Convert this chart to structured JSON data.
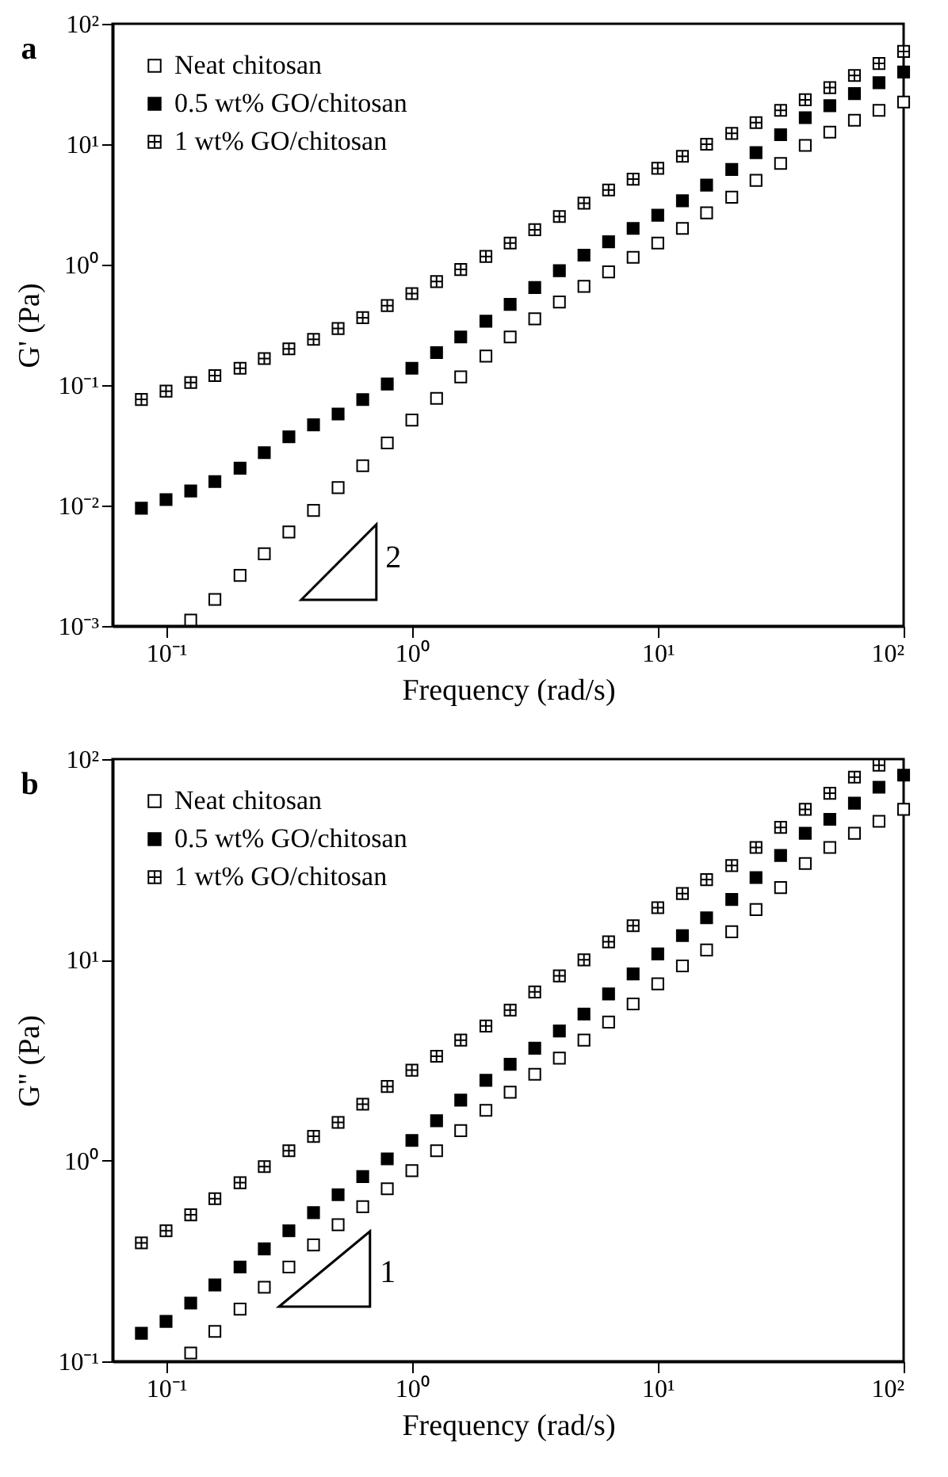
{
  "chart_data": [
    {
      "type": "scatter",
      "title": "a",
      "xlabel": "Frequency (rad/s)",
      "ylabel": "G' (Pa)",
      "log": "xy",
      "grid": false,
      "legend": "top left",
      "marker": "square",
      "annotations": [
        "2"
      ],
      "xlim": [
        0.0606,
        100
      ],
      "ylim": [
        0.001,
        100
      ],
      "xticks": [
        {
          "value": 0.1,
          "label": "10⁻¹"
        },
        {
          "value": 1,
          "label": "10⁰"
        },
        {
          "value": 10,
          "label": "10¹"
        },
        {
          "value": 100,
          "label": "10²"
        }
      ],
      "yticks": [
        {
          "value": 0.001,
          "label": "10⁻³"
        },
        {
          "value": 0.01,
          "label": "10⁻²"
        },
        {
          "value": 0.1,
          "label": "10⁻¹"
        },
        {
          "value": 1,
          "label": "10⁰"
        },
        {
          "value": 10,
          "label": "10¹"
        },
        {
          "value": 100,
          "label": "10²"
        }
      ],
      "x": [
        0.0794,
        0.1,
        0.126,
        0.158,
        0.2,
        0.251,
        0.316,
        0.398,
        0.501,
        0.631,
        0.794,
        1,
        1.26,
        1.58,
        2,
        2.51,
        3.16,
        3.98,
        5.01,
        6.31,
        7.94,
        10,
        12.6,
        15.8,
        20,
        25.1,
        31.6,
        39.8,
        50.1,
        63.1,
        79.4,
        100
      ],
      "series": [
        {
          "name": "Neat chitosan",
          "color": "#000000",
          "values": [
            null,
            null,
            0.00112,
            0.00166,
            0.00263,
            0.00398,
            0.00603,
            0.00912,
            0.0141,
            0.0214,
            0.0331,
            0.0513,
            0.0776,
            0.117,
            0.174,
            0.251,
            0.355,
            0.49,
            0.661,
            0.871,
            1.15,
            1.51,
            2.0,
            2.69,
            3.63,
            5.01,
            6.92,
            9.77,
            12.6,
            15.8,
            19.1,
            22.4
          ]
        },
        {
          "name": "0.5 wt% GO/chitosan",
          "color": "#000000",
          "values": [
            0.0095,
            0.0112,
            0.0132,
            0.0158,
            0.0204,
            0.0275,
            0.0372,
            0.0468,
            0.0575,
            0.0759,
            0.102,
            0.138,
            0.186,
            0.251,
            0.339,
            0.468,
            0.646,
            0.891,
            1.2,
            1.55,
            2.0,
            2.57,
            3.39,
            4.57,
            6.17,
            8.51,
            12.0,
            16.6,
            20.9,
            26.3,
            32.4,
            39.8
          ]
        },
        {
          "name": "1 wt% GO/chitosan",
          "color": "#000000",
          "marker": "cross",
          "values": [
            0.076,
            0.089,
            0.105,
            0.12,
            0.138,
            0.166,
            0.2,
            0.24,
            0.295,
            0.363,
            0.457,
            0.575,
            0.724,
            0.912,
            1.17,
            1.51,
            1.95,
            2.51,
            3.24,
            4.17,
            5.13,
            6.31,
            7.94,
            10,
            12.3,
            15.1,
            19.1,
            23.4,
            29.5,
            37.2,
            46.8,
            58.9
          ]
        }
      ]
    },
    {
      "type": "scatter",
      "title": "b",
      "xlabel": "Frequency (rad/s)",
      "ylabel": "G\" (Pa)",
      "log": "xy",
      "grid": false,
      "legend": "top left",
      "marker": "square",
      "annotations": [
        "1"
      ],
      "xlim": [
        0.0606,
        100
      ],
      "ylim": [
        0.1,
        100
      ],
      "xticks": [
        {
          "value": 0.1,
          "label": "10⁻¹"
        },
        {
          "value": 1,
          "label": "10⁰"
        },
        {
          "value": 10,
          "label": "10¹"
        },
        {
          "value": 100,
          "label": "10²"
        }
      ],
      "yticks": [
        {
          "value": 0.1,
          "label": "10⁻¹"
        },
        {
          "value": 1,
          "label": "10⁰"
        },
        {
          "value": 10,
          "label": "10¹"
        },
        {
          "value": 100,
          "label": "10²"
        }
      ],
      "x": [
        0.0794,
        0.1,
        0.126,
        0.158,
        0.2,
        0.251,
        0.316,
        0.398,
        0.501,
        0.631,
        0.794,
        1,
        1.26,
        1.58,
        2,
        2.51,
        3.16,
        3.98,
        5.01,
        6.31,
        7.94,
        10,
        12.6,
        15.8,
        20,
        25.1,
        31.6,
        39.8,
        50.1,
        63.1,
        79.4,
        100
      ],
      "series": [
        {
          "name": "Neat chitosan",
          "color": "#000000",
          "values": [
            null,
            null,
            0.11,
            0.141,
            0.182,
            0.234,
            0.295,
            0.38,
            0.479,
            0.589,
            0.724,
            0.891,
            1.12,
            1.41,
            1.78,
            2.19,
            2.69,
            3.24,
            3.98,
            4.9,
            6.03,
            7.59,
            9.33,
            11.2,
            13.8,
            17.8,
            22.9,
            30.2,
            36.3,
            42.7,
            49.0,
            56.2
          ]
        },
        {
          "name": "0.5 wt% GO/chitosan",
          "color": "#000000",
          "values": [
            0.138,
            0.158,
            0.195,
            0.24,
            0.295,
            0.363,
            0.447,
            0.55,
            0.676,
            0.832,
            1.02,
            1.26,
            1.58,
            2.0,
            2.51,
            3.02,
            3.63,
            4.42,
            5.37,
            6.76,
            8.51,
            10.7,
            13.2,
            16.2,
            20.0,
            25.7,
            33.1,
            42.7,
            50.1,
            60.3,
            72.4,
            83.2
          ]
        },
        {
          "name": "1 wt% GO/chitosan",
          "color": "#000000",
          "marker": "cross",
          "values": [
            0.389,
            0.447,
            0.537,
            0.646,
            0.776,
            0.933,
            1.12,
            1.32,
            1.55,
            1.91,
            2.34,
            2.82,
            3.31,
            3.98,
            4.68,
            5.62,
            6.92,
            8.32,
            10.0,
            12.3,
            14.8,
            18.2,
            21.4,
            25.1,
            29.5,
            36.3,
            45.7,
            56.2,
            67.6,
            81.3,
            93.3,
            null
          ]
        }
      ]
    }
  ]
}
